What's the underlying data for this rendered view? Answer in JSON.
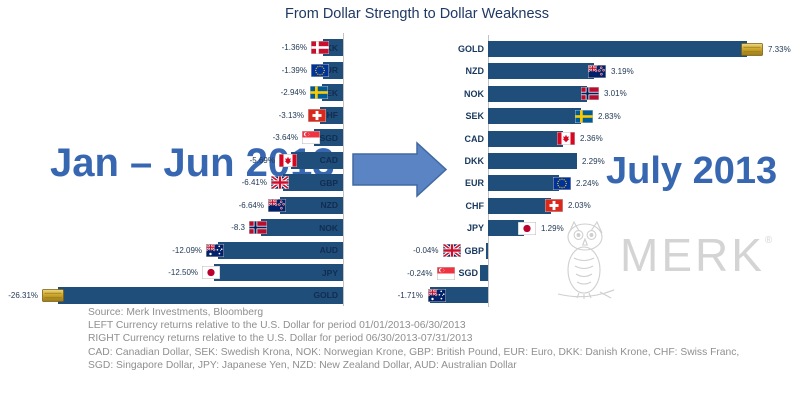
{
  "title": "From Dollar Strength to Dollar Weakness",
  "logo": {
    "text": "MERK",
    "registered": "®"
  },
  "footnotes": [
    "Source: Merk Investments, Bloomberg",
    "LEFT Currency returns relative to the U.S. Dollar for period 01/01/2013-06/30/2013",
    "RIGHT Currency returns relative to the U.S. Dollar for period 06/30/2013-07/31/2013",
    "CAD: Canadian Dollar, SEK: Swedish Krona, NOK: Norwegian Krone, GBP: British Pound, EUR: Euro, DKK: Danish Krone, CHF: Swiss Franc,",
    "SGD: Singapore Dollar, JPY: Japanese Yen, NZD: New Zealand Dollar, AUD: Australian Dollar"
  ],
  "colors": {
    "bar": "#1F4E7A",
    "arrow_fill": "#5B84C5",
    "arrow_stroke": "#4169A1",
    "period_label": "#3767B1",
    "title_text": "#1F3864",
    "logo_gray": "#D4D4D4",
    "footnote_gray": "#8F8F8F",
    "code_dark": "#17375E"
  },
  "chart_data": [
    {
      "type": "bar",
      "orientation": "horizontal",
      "bars_extend": "left",
      "unit": "%",
      "title": "Jan – Jun 2013",
      "xlim": [
        -28,
        0
      ],
      "rows": [
        {
          "code": "DKK",
          "flag": "denmark",
          "value": -1.36,
          "label": "-1.36%"
        },
        {
          "code": "EUR",
          "flag": "eu",
          "value": -1.39,
          "label": "-1.39%"
        },
        {
          "code": "SEK",
          "flag": "sweden",
          "value": -2.94,
          "label": "-2.94%"
        },
        {
          "code": "CHF",
          "flag": "switzerland",
          "value": -3.13,
          "label": "-3.13%"
        },
        {
          "code": "SGD",
          "flag": "singapore",
          "value": -3.64,
          "label": "-3.64%"
        },
        {
          "code": "CAD",
          "flag": "canada",
          "value": -5.69,
          "label": "-5.69%"
        },
        {
          "code": "GBP",
          "flag": "uk",
          "value": -6.41,
          "label": "-6.41%"
        },
        {
          "code": "NZD",
          "flag": "newzealand",
          "value": -6.64,
          "label": "-6.64%"
        },
        {
          "code": "NOK",
          "flag": "norway",
          "value": -8.3,
          "label": "-8.3"
        },
        {
          "code": "AUD",
          "flag": "australia",
          "value": -12.09,
          "label": "-12.09%"
        },
        {
          "code": "JPY",
          "flag": "japan",
          "value": -12.5,
          "label": "-12.50%"
        },
        {
          "code": "GOLD",
          "flag": "gold",
          "value": -26.31,
          "label": "-26.31%"
        }
      ]
    },
    {
      "type": "bar",
      "orientation": "horizontal",
      "bars_extend": "right",
      "unit": "%",
      "title": "July 2013",
      "xlim": [
        -2,
        8
      ],
      "rows": [
        {
          "code": "GOLD",
          "flag": "gold",
          "value": 7.33,
          "label": "7.33%"
        },
        {
          "code": "NZD",
          "flag": "newzealand",
          "value": 3.19,
          "label": "3.19%"
        },
        {
          "code": "NOK",
          "flag": "norway",
          "value": 3.01,
          "label": "3.01%"
        },
        {
          "code": "SEK",
          "flag": "sweden",
          "value": 2.83,
          "label": "2.83%"
        },
        {
          "code": "CAD",
          "flag": "canada",
          "value": 2.36,
          "label": "2.36%"
        },
        {
          "code": "DKK",
          "flag": null,
          "value": 2.29,
          "label": "2.29%"
        },
        {
          "code": "EUR",
          "flag": "eu",
          "value": 2.24,
          "label": "2.24%"
        },
        {
          "code": "CHF",
          "flag": "switzerland",
          "value": 2.03,
          "label": "2.03%"
        },
        {
          "code": "JPY",
          "flag": "japan",
          "value": 1.29,
          "label": "1.29%"
        },
        {
          "code": "GBP",
          "flag": "uk",
          "value": -0.04,
          "label": "-0.04%",
          "code_visible": true
        },
        {
          "code": "SGD",
          "flag": "singapore",
          "value": -0.24,
          "label": "-0.24%",
          "code_visible": true
        },
        {
          "code": "AUD",
          "flag": "australia",
          "value": -1.71,
          "label": "-1.71%",
          "code_visible": false
        }
      ]
    }
  ]
}
